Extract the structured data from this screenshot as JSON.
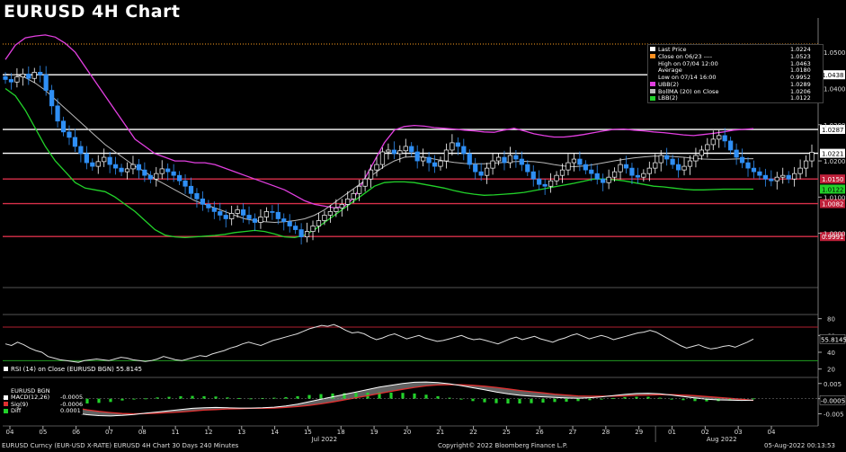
{
  "title": "EURUSD 4H Chart",
  "colors": {
    "up": "#ffffff",
    "down": "#2f8ff5",
    "ubb": "#e23fe0",
    "lbb": "#22d22a",
    "mid": "#b8b8b8",
    "hline_white": "#ffffff",
    "hline_red": "#d8304a",
    "dotted": "#ffa020"
  },
  "legend": {
    "items": [
      {
        "label": "Last Price",
        "value": "1.0224",
        "color": "#ffffff"
      },
      {
        "label": "Close on 06/23  ----",
        "value": "1.0523",
        "color": "#ff9020"
      },
      {
        "label": "High on 07/04 12:00",
        "value": "1.0463",
        "color": "#000000"
      },
      {
        "label": "Average",
        "value": "1.0180",
        "color": "#000000"
      },
      {
        "label": "Low on 07/14 16:00",
        "value": "0.9952",
        "color": "#000000"
      },
      {
        "label": "UBB(2)",
        "value": "1.0289",
        "color": "#e23fe0"
      },
      {
        "label": "BollMA (20)  on Close",
        "value": "1.0206",
        "color": "#b8b8b8"
      },
      {
        "label": "LBB(2)",
        "value": "1.0122",
        "color": "#22d22a"
      }
    ]
  },
  "chart_data": {
    "type": "candlestick",
    "price_axis": {
      "ylim": [
        0.985,
        1.059
      ],
      "ticks": [
        "1.0500",
        "1.0400",
        "1.0300",
        "1.0200",
        "1.0100",
        "1.0000"
      ],
      "tick_values": [
        1.05,
        1.04,
        1.03,
        1.02,
        1.01,
        1.0
      ]
    },
    "horizontal_levels": [
      {
        "value": 1.0438,
        "label": "1.0438",
        "color": "#ffffff"
      },
      {
        "value": 1.0287,
        "label": "1.0287",
        "color": "#ffffff"
      },
      {
        "value": 1.0221,
        "label": "1.0221",
        "color": "#ffffff"
      },
      {
        "value": 1.015,
        "label": "1.0150",
        "color": "#d8304a"
      },
      {
        "value": 1.0082,
        "label": "1.0082",
        "color": "#d8304a"
      },
      {
        "value": 0.9991,
        "label": "0.9991",
        "color": "#d8304a"
      }
    ],
    "dotted_level": {
      "value": 1.0523
    },
    "axis_tags": [
      {
        "value": 1.0122,
        "label": "1.0122",
        "color": "#22d22a"
      }
    ],
    "x_labels": [
      "04",
      "05",
      "06",
      "07",
      "08",
      "11",
      "12",
      "13",
      "14",
      "15",
      "18",
      "19",
      "20",
      "21",
      "22",
      "25",
      "26",
      "27",
      "28",
      "29",
      "01",
      "02",
      "03",
      "04"
    ],
    "month_labels": [
      {
        "label": "Jul 2022",
        "index": 9.5
      },
      {
        "label": "Aug 2022",
        "index": 21.5
      }
    ],
    "closes": [
      1.0425,
      1.0418,
      1.0432,
      1.044,
      1.0428,
      1.0445,
      1.0438,
      1.0395,
      1.0352,
      1.031,
      1.028,
      1.0265,
      1.024,
      1.022,
      1.0195,
      1.0185,
      1.0198,
      1.021,
      1.019,
      1.018,
      1.017,
      1.0178,
      1.019,
      1.0175,
      1.016,
      1.015,
      1.0165,
      1.0178,
      1.017,
      1.016,
      1.0145,
      1.013,
      1.011,
      1.0095,
      1.008,
      1.007,
      1.006,
      1.005,
      1.004,
      1.0055,
      1.0065,
      1.005,
      1.004,
      1.003,
      1.0045,
      1.006,
      1.0058,
      1.004,
      1.0032,
      1.002,
      1.001,
      0.999,
      1.0005,
      1.002,
      1.0035,
      1.005,
      1.006,
      1.007,
      1.008,
      1.0095,
      1.011,
      1.013,
      1.015,
      1.0175,
      1.019,
      1.0225,
      1.023,
      1.022,
      1.0228,
      1.024,
      1.0225,
      1.02,
      1.021,
      1.0195,
      1.0185,
      1.02,
      1.023,
      1.025,
      1.024,
      1.022,
      1.019,
      1.017,
      1.016,
      1.018,
      1.02,
      1.021,
      1.0195,
      1.0215,
      1.0205,
      1.019,
      1.017,
      1.015,
      1.0135,
      1.013,
      1.0145,
      1.016,
      1.0175,
      1.0195,
      1.0205,
      1.019,
      1.0175,
      1.0165,
      1.015,
      1.014,
      1.0155,
      1.017,
      1.019,
      1.018,
      1.016,
      1.0155,
      1.0165,
      1.018,
      1.0195,
      1.0215,
      1.0205,
      1.019,
      1.0175,
      1.0185,
      1.02,
      1.0215,
      1.023,
      1.0245,
      1.026,
      1.027,
      1.0255,
      1.023,
      1.021,
      1.0195,
      1.018,
      1.017,
      1.016,
      1.015,
      1.0145,
      1.0155,
      1.016,
      1.015,
      1.0165,
      1.018,
      1.02,
      1.0224
    ],
    "ubb": [
      1.048,
      1.052,
      1.054,
      1.0545,
      1.0548,
      1.0542,
      1.0525,
      1.05,
      1.046,
      1.042,
      1.038,
      1.034,
      1.03,
      1.026,
      1.024,
      1.022,
      1.021,
      1.02,
      1.02,
      1.0195,
      1.0195,
      1.019,
      1.018,
      1.017,
      1.016,
      1.015,
      1.014,
      1.013,
      1.012,
      1.0105,
      1.009,
      1.008,
      1.0075,
      1.007,
      1.0075,
      1.01,
      1.015,
      1.02,
      1.025,
      1.0285,
      1.0295,
      1.0298,
      1.0296,
      1.0292,
      1.029,
      1.0288,
      1.0285,
      1.0283,
      1.028,
      1.0279,
      1.0285,
      1.029,
      1.0283,
      1.0275,
      1.027,
      1.0266,
      1.0266,
      1.0269,
      1.0273,
      1.0278,
      1.0283,
      1.0287,
      1.0288,
      1.0285,
      1.0283,
      1.028,
      1.0278,
      1.0275,
      1.0272,
      1.027,
      1.0273,
      1.0276,
      1.028,
      1.0285,
      1.0287,
      1.0289
    ],
    "mid": [
      1.044,
      1.0438,
      1.043,
      1.0415,
      1.0395,
      1.037,
      1.0345,
      1.032,
      1.0295,
      1.027,
      1.0245,
      1.0225,
      1.0205,
      1.0185,
      1.017,
      1.015,
      1.0135,
      1.012,
      1.0105,
      1.009,
      1.008,
      1.007,
      1.006,
      1.005,
      1.004,
      1.0035,
      1.0032,
      1.003,
      1.0032,
      1.0035,
      1.004,
      1.005,
      1.0065,
      1.0085,
      1.0105,
      1.0125,
      1.0145,
      1.0165,
      1.0185,
      1.02,
      1.021,
      1.0212,
      1.021,
      1.0205,
      1.02,
      1.0196,
      1.0193,
      1.0192,
      1.0192,
      1.0194,
      1.0196,
      1.0198,
      1.0199,
      1.0198,
      1.0195,
      1.019,
      1.0186,
      1.0184,
      1.0186,
      1.019,
      1.0195,
      1.02,
      1.0204,
      1.0208,
      1.0211,
      1.0213,
      1.0213,
      1.0212,
      1.021,
      1.0207,
      1.0205,
      1.0204,
      1.0204,
      1.0205,
      1.0206,
      1.0206
    ],
    "lbb": [
      1.04,
      1.038,
      1.034,
      1.029,
      1.024,
      1.02,
      1.017,
      1.014,
      1.0125,
      1.012,
      1.0115,
      1.01,
      1.008,
      1.006,
      1.0035,
      1.001,
      0.9995,
      0.999,
      0.9988,
      0.999,
      0.9992,
      0.9994,
      0.9997,
      1.0002,
      1.0005,
      1.0008,
      1.0005,
      0.9998,
      0.999,
      0.9988,
      0.9995,
      1.001,
      1.003,
      1.005,
      1.007,
      1.009,
      1.011,
      1.013,
      1.014,
      1.0142,
      1.0142,
      1.014,
      1.0135,
      1.013,
      1.0125,
      1.0118,
      1.0112,
      1.0108,
      1.0105,
      1.0106,
      1.0108,
      1.011,
      1.0113,
      1.0118,
      1.0123,
      1.0128,
      1.0133,
      1.0138,
      1.0144,
      1.015,
      1.015,
      1.0148,
      1.0145,
      1.014,
      1.0135,
      1.013,
      1.0128,
      1.0125,
      1.0122,
      1.012,
      1.012,
      1.0121,
      1.0122,
      1.0122,
      1.0122,
      1.0122
    ],
    "rsi": {
      "label": "RSI (14)  on Close (EURUSD BGN) 55.8145",
      "ticks": [
        "80",
        "60",
        "40",
        "20"
      ],
      "tick_values": [
        80,
        60,
        40,
        20
      ],
      "ylim": [
        10,
        85
      ],
      "overbought": 70,
      "oversold": 30,
      "last": "55.8145",
      "values": [
        50,
        48,
        52,
        49,
        45,
        42,
        40,
        35,
        33,
        31,
        30,
        29,
        28,
        30,
        31,
        32,
        31,
        30,
        32,
        34,
        33,
        31,
        30,
        29,
        30,
        32,
        35,
        33,
        31,
        30,
        32,
        34,
        36,
        35,
        38,
        40,
        42,
        45,
        47,
        50,
        52,
        50,
        48,
        51,
        54,
        56,
        58,
        60,
        62,
        65,
        68,
        70,
        72,
        71,
        73,
        70,
        66,
        63,
        64,
        62,
        58,
        55,
        57,
        60,
        62,
        59,
        56,
        58,
        60,
        57,
        55,
        53,
        54,
        56,
        58,
        60,
        57,
        55,
        56,
        54,
        52,
        50,
        53,
        56,
        58,
        55,
        57,
        59,
        56,
        54,
        52,
        55,
        57,
        60,
        62,
        59,
        56,
        58,
        60,
        58,
        55,
        57,
        59,
        61,
        63,
        64,
        66,
        64,
        60,
        56,
        52,
        48,
        45,
        47,
        49,
        46,
        44,
        45,
        47,
        48,
        46,
        49,
        52,
        55.8
      ]
    },
    "macd": {
      "ticks": [
        "0.005",
        "0.000",
        "-0.005"
      ],
      "tick_values": [
        0.005,
        0.0,
        -0.005
      ],
      "ylim": [
        -0.009,
        0.007
      ],
      "last": "-0.0005",
      "legend": [
        {
          "label": "EURUSD BGN",
          "value": "",
          "color": ""
        },
        {
          "label": "MACD(12,26)",
          "value": "-0.0005",
          "color": "#ffffff"
        },
        {
          "label": "Sig(9)",
          "value": "-0.0006",
          "color": "#e03030"
        },
        {
          "label": "Diff",
          "value": "0.0001",
          "color": "#22d22a"
        }
      ],
      "macd": [
        0.0,
        -0.0005,
        -0.0012,
        -0.002,
        -0.003,
        -0.004,
        -0.0048,
        -0.0053,
        -0.0056,
        -0.0057,
        -0.0055,
        -0.0052,
        -0.0048,
        -0.0044,
        -0.004,
        -0.0036,
        -0.0032,
        -0.003,
        -0.0029,
        -0.003,
        -0.0031,
        -0.0031,
        -0.003,
        -0.0028,
        -0.0024,
        -0.0018,
        -0.001,
        -0.0002,
        0.0006,
        0.0014,
        0.0022,
        0.003,
        0.0038,
        0.0044,
        0.005,
        0.0054,
        0.0055,
        0.0053,
        0.0049,
        0.0043,
        0.0036,
        0.0029,
        0.0022,
        0.0016,
        0.0011,
        0.0008,
        0.0006,
        0.0004,
        0.0002,
        0.0001,
        0.0003,
        0.0006,
        0.001,
        0.0014,
        0.0017,
        0.0018,
        0.0016,
        0.0012,
        0.0007,
        0.0002,
        -0.0002,
        -0.0004,
        -0.0005,
        -0.0006,
        -0.0005
      ],
      "signal": [
        0.0,
        -0.0002,
        -0.0005,
        -0.001,
        -0.0016,
        -0.0023,
        -0.003,
        -0.0037,
        -0.0042,
        -0.0046,
        -0.0049,
        -0.005,
        -0.0049,
        -0.0048,
        -0.0046,
        -0.0044,
        -0.0041,
        -0.0038,
        -0.0036,
        -0.0034,
        -0.0033,
        -0.0032,
        -0.0032,
        -0.0031,
        -0.0029,
        -0.0026,
        -0.0022,
        -0.0017,
        -0.0011,
        -0.0004,
        0.0003,
        0.001,
        0.0017,
        0.0024,
        0.0031,
        0.0037,
        0.0042,
        0.0045,
        0.0046,
        0.0046,
        0.0044,
        0.0041,
        0.0037,
        0.0032,
        0.0027,
        0.0023,
        0.0019,
        0.0015,
        0.0012,
        0.0009,
        0.0008,
        0.0008,
        0.0008,
        0.0009,
        0.0011,
        0.0012,
        0.0013,
        0.0013,
        0.0012,
        0.001,
        0.0007,
        0.0004,
        0.0001,
        -0.0002,
        -0.0006
      ]
    }
  },
  "footer": {
    "left": "EURUSD Curncy (EUR-USD X-RATE) EURUSD 4H Chart 30 Days 240 Minutes",
    "center": "Copyright© 2022 Bloomberg Finance L.P.",
    "right": "05-Aug-2022 00:13:53"
  }
}
